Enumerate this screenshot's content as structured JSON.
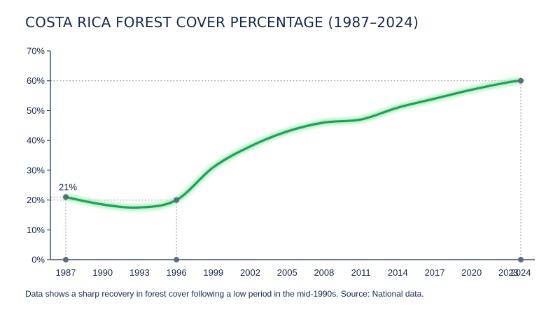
{
  "title": "COSTA RICA FOREST COVER PERCENTAGE (1987–2024)",
  "caption": "Data shows a sharp recovery in forest cover following a low period in the mid-1990s. Source: National data.",
  "colors": {
    "line": "#1fa05a",
    "glow": "#a9ecb9",
    "axis": "#14284b",
    "marker": "#5b6b7e",
    "guide": "#8a95a3",
    "text": "#14284b"
  },
  "chart_data": {
    "type": "line",
    "title": "COSTA RICA FOREST COVER PERCENTAGE (1987–2024)",
    "xlabel": "",
    "ylabel": "",
    "x_ticks": [
      1987,
      1990,
      1993,
      1996,
      1999,
      2002,
      2005,
      2008,
      2011,
      2014,
      2017,
      2020,
      2023,
      2024
    ],
    "y_ticks": [
      "0%",
      "10%",
      "20%",
      "30%",
      "40%",
      "50%",
      "60%",
      "70%"
    ],
    "xlim": [
      1987,
      2024
    ],
    "ylim": [
      0,
      70
    ],
    "grid": false,
    "series": [
      {
        "x": [
          1987,
          1990,
          1993,
          1996,
          1999,
          2002,
          2005,
          2008,
          2011,
          2014,
          2017,
          2020,
          2023,
          2024
        ],
        "y": [
          21,
          18.5,
          17.5,
          20,
          31,
          38,
          43,
          46,
          47,
          51,
          54,
          57,
          59.5,
          60
        ]
      }
    ],
    "highlighted_points": [
      {
        "x": 1987,
        "y": 21,
        "label": "21%"
      },
      {
        "x": 1996,
        "y": 20
      },
      {
        "x": 2024,
        "y": 60
      }
    ]
  }
}
